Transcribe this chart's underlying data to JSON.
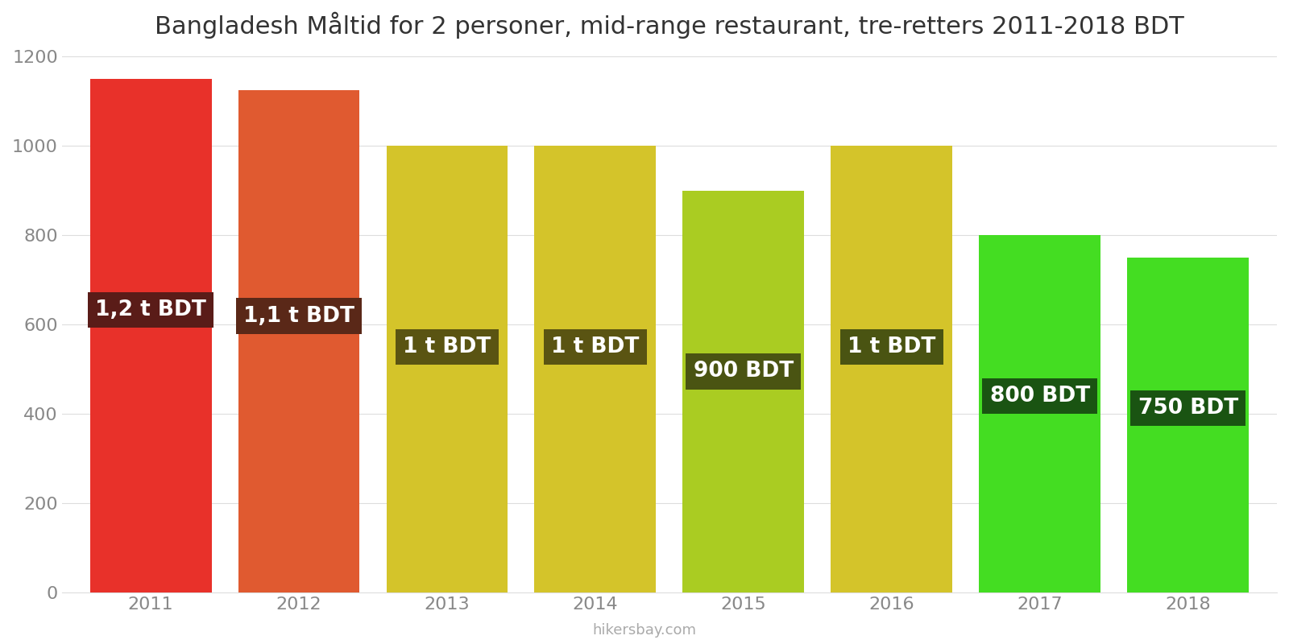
{
  "title": "Bangladesh Måltid for 2 personer, mid-range restaurant, tre-retters 2011-2018 BDT",
  "years": [
    2011,
    2012,
    2013,
    2014,
    2015,
    2016,
    2017,
    2018
  ],
  "values": [
    1150,
    1125,
    1000,
    1000,
    900,
    1000,
    800,
    750
  ],
  "labels": [
    "1,2 t BDT",
    "1,1 t BDT",
    "1 t BDT",
    "1 t BDT",
    "900 BDT",
    "1 t BDT",
    "800 BDT",
    "750 BDT"
  ],
  "bar_colors": [
    "#e8312a",
    "#e05a30",
    "#d4c42a",
    "#d4c42a",
    "#aacc22",
    "#d4c42a",
    "#44dd22",
    "#44dd22"
  ],
  "label_bg_colors": [
    "#5a1c18",
    "#5a2818",
    "#5a5412",
    "#5a5412",
    "#4a5412",
    "#4a5412",
    "#1a5412",
    "#1a5412"
  ],
  "ylim": [
    0,
    1200
  ],
  "yticks": [
    0,
    200,
    400,
    600,
    800,
    1000,
    1200
  ],
  "watermark": "hikersbay.com",
  "title_fontsize": 22,
  "tick_fontsize": 16,
  "label_fontsize": 19,
  "background_color": "#ffffff",
  "grid_color": "#dddddd"
}
